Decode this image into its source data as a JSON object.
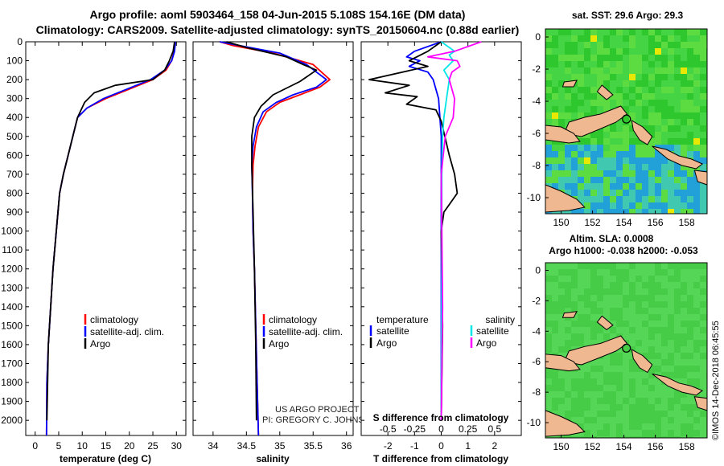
{
  "title": {
    "line1": "Argo profile: aoml 5903464_158 04-Jun-2015 5.108S 154.16E (DM data)",
    "line2": "Climatology: CARS2009. Satellite-adjusted climatology: synTS_20150604.nc (0.88d earlier)"
  },
  "colors": {
    "climatology": "#ff0000",
    "satellite": "#0000ff",
    "argo": "#000000",
    "salinity_satellite": "#00e6e6",
    "salinity_argo": "#ff00ff",
    "land": "#f0b890",
    "sst_ocean": "#33cc33",
    "sla_ocean": "#4fd14f"
  },
  "chart_data": [
    {
      "type": "line",
      "name": "temperature-profile",
      "xlabel": "temperature (deg C)",
      "ylabel": "",
      "xlim": [
        -2,
        32
      ],
      "ylim": [
        2080,
        0
      ],
      "xticks": [
        "0",
        "5",
        "10",
        "15",
        "20",
        "25",
        "30"
      ],
      "yticks": [
        "0",
        "100",
        "200",
        "300",
        "400",
        "500",
        "600",
        "700",
        "800",
        "900",
        "1000",
        "1100",
        "1200",
        "1300",
        "1400",
        "1500",
        "1600",
        "1700",
        "1800",
        "1900",
        "2000"
      ],
      "legend": [
        "climatology",
        "satellite-adj. clim.",
        "Argo"
      ],
      "series": [
        {
          "name": "climatology",
          "color": "#ff0000",
          "x": [
            29.8,
            29.5,
            29.0,
            27.8,
            25,
            20,
            15,
            11,
            9,
            8,
            7,
            6,
            5.2,
            4.5,
            3.8,
            3.3,
            2.8,
            2.5,
            2.4
          ],
          "y": [
            0,
            50,
            100,
            150,
            200,
            250,
            300,
            350,
            400,
            500,
            600,
            700,
            800,
            1000,
            1200,
            1400,
            1600,
            1800,
            2080
          ]
        },
        {
          "name": "satellite-adj. clim.",
          "color": "#0000ff",
          "x": [
            29.8,
            29.6,
            29.0,
            27.5,
            24.5,
            19.5,
            14.5,
            11,
            9,
            8,
            7,
            6,
            5.2,
            4.5,
            3.8,
            3.3,
            2.8,
            2.5,
            2.4
          ],
          "y": [
            0,
            50,
            100,
            150,
            200,
            250,
            300,
            350,
            400,
            500,
            600,
            700,
            800,
            1000,
            1200,
            1400,
            1600,
            1800,
            2080
          ]
        },
        {
          "name": "Argo",
          "color": "#000000",
          "x": [
            29.6,
            29.3,
            28.5,
            27.5,
            25,
            17,
            12.5,
            10.5,
            9,
            8,
            7,
            6,
            5.2,
            4.5,
            3.8,
            3.3,
            2.8,
            2.5
          ],
          "y": [
            0,
            50,
            100,
            150,
            200,
            230,
            270,
            320,
            400,
            500,
            600,
            700,
            800,
            1000,
            1200,
            1400,
            1600,
            2000
          ]
        }
      ]
    },
    {
      "type": "line",
      "name": "salinity-profile",
      "xlabel": "salinity",
      "ylabel": "",
      "xlim": [
        33.7,
        36.1
      ],
      "ylim": [
        2080,
        0
      ],
      "xticks": [
        "34",
        "34.5",
        "35",
        "35.5",
        "36"
      ],
      "legend": [
        "climatology",
        "satellite-adj. clim.",
        "Argo"
      ],
      "series": [
        {
          "name": "climatology",
          "color": "#ff0000",
          "x": [
            34.1,
            34.3,
            34.9,
            35.5,
            35.75,
            35.6,
            35.3,
            35.0,
            34.8,
            34.68,
            34.63,
            34.6,
            34.59,
            34.6,
            34.62,
            34.64,
            34.66,
            34.68
          ],
          "y": [
            0,
            20,
            60,
            120,
            200,
            240,
            280,
            320,
            370,
            450,
            550,
            650,
            800,
            1000,
            1200,
            1500,
            1800,
            2080
          ]
        },
        {
          "name": "satellite-adj. clim.",
          "color": "#0000ff",
          "x": [
            34.1,
            34.4,
            35.0,
            35.4,
            35.7,
            35.55,
            35.2,
            34.95,
            34.75,
            34.65,
            34.6,
            34.58,
            34.59,
            34.6,
            34.62,
            34.64,
            34.66,
            34.68
          ],
          "y": [
            0,
            20,
            60,
            120,
            200,
            240,
            280,
            320,
            370,
            450,
            550,
            650,
            800,
            1000,
            1200,
            1500,
            1800,
            2080
          ]
        },
        {
          "name": "Argo",
          "color": "#000000",
          "x": [
            34.2,
            34.5,
            35.1,
            35.35,
            35.55,
            35.3,
            34.9,
            34.72,
            34.62,
            34.58,
            34.58,
            34.6,
            34.62,
            34.64,
            34.65
          ],
          "y": [
            0,
            30,
            80,
            120,
            150,
            210,
            280,
            340,
            400,
            500,
            650,
            900,
            1200,
            1600,
            2000
          ]
        }
      ]
    },
    {
      "type": "line",
      "name": "difference-from-climatology",
      "xlabel": "T difference from climatology",
      "x2label": "S difference from climatology",
      "xlim": [
        -3,
        3
      ],
      "ylim": [
        2080,
        0
      ],
      "xticks": [
        "-2",
        "-1",
        "0",
        "1",
        "2"
      ],
      "x2ticks": [
        "-0.5",
        "-0.25",
        "0",
        "0.25",
        "0.5"
      ],
      "legend_temperature": {
        "title": "temperature",
        "items": [
          "satellite",
          "Argo"
        ]
      },
      "legend_salinity": {
        "title": "salinity",
        "items": [
          "satellite",
          "Argo"
        ]
      },
      "series": [
        {
          "name": "temperature satellite",
          "color": "#0000ff",
          "x": [
            0,
            -1,
            -1.3,
            -0.8,
            -1.2,
            -0.5,
            -0.3,
            -0.1,
            0,
            0,
            0,
            0
          ],
          "y": [
            0,
            50,
            80,
            100,
            130,
            160,
            200,
            300,
            500,
            800,
            1500,
            2000
          ]
        },
        {
          "name": "temperature Argo",
          "color": "#000000",
          "x": [
            0,
            -0.5,
            -1.2,
            -0.5,
            -2.7,
            -1.2,
            -2.1,
            -0.9,
            -1.3,
            -0.2,
            0,
            0.3,
            0.5,
            0.6,
            0.3,
            0.1,
            0,
            0.05,
            0
          ],
          "y": [
            0,
            50,
            100,
            130,
            200,
            230,
            270,
            290,
            330,
            360,
            420,
            600,
            700,
            800,
            860,
            900,
            1000,
            1500,
            2000
          ]
        },
        {
          "name": "salinity satellite",
          "color": "#00e6e6",
          "x": [
            0,
            0.5,
            0.3,
            0.45,
            0.1,
            0.3,
            0.2,
            0.1,
            0.05,
            0.02,
            0.02,
            0
          ],
          "y": [
            0,
            50,
            70,
            100,
            150,
            200,
            300,
            400,
            500,
            700,
            1200,
            2000
          ]
        },
        {
          "name": "salinity Argo",
          "color": "#ff00ff",
          "x": [
            1.5,
            0.5,
            -0.5,
            0.6,
            0.7,
            0.4,
            0.3,
            0.5,
            0.45,
            0.15,
            0,
            0.05,
            0
          ],
          "y": [
            0,
            50,
            80,
            100,
            130,
            160,
            200,
            300,
            400,
            500,
            700,
            1400,
            2000
          ]
        }
      ]
    },
    {
      "type": "heatmap",
      "name": "sst-map",
      "title": "sat. SST: 29.6 Argo: 29.3",
      "xticks": [
        "150",
        "152",
        "154",
        "156",
        "158"
      ],
      "yticks": [
        "0",
        "-2",
        "-4",
        "-6",
        "-8",
        "-10"
      ],
      "xlim": [
        149,
        159.3
      ],
      "ylim": [
        -11,
        0.5
      ],
      "marker": {
        "lon": 154.16,
        "lat": -5.108
      }
    },
    {
      "type": "heatmap",
      "name": "sla-map",
      "title": "Altim. SLA: 0.0008",
      "subtitle": "Argo h1000: -0.038 h2000: -0.053",
      "xticks": [
        "150",
        "152",
        "154",
        "156",
        "158"
      ],
      "yticks": [
        "0",
        "-2",
        "-4",
        "-6",
        "-8",
        "-10"
      ],
      "xlim": [
        149,
        159.3
      ],
      "ylim": [
        -11,
        0.5
      ],
      "marker": {
        "lon": 154.16,
        "lat": -5.108
      }
    }
  ],
  "credits": {
    "line1": "US ARGO PROJECT",
    "line2": "PI: GREGORY C. JOHNSON"
  },
  "stamp": "©IMOS 14-Dec-2018 06:45:55"
}
